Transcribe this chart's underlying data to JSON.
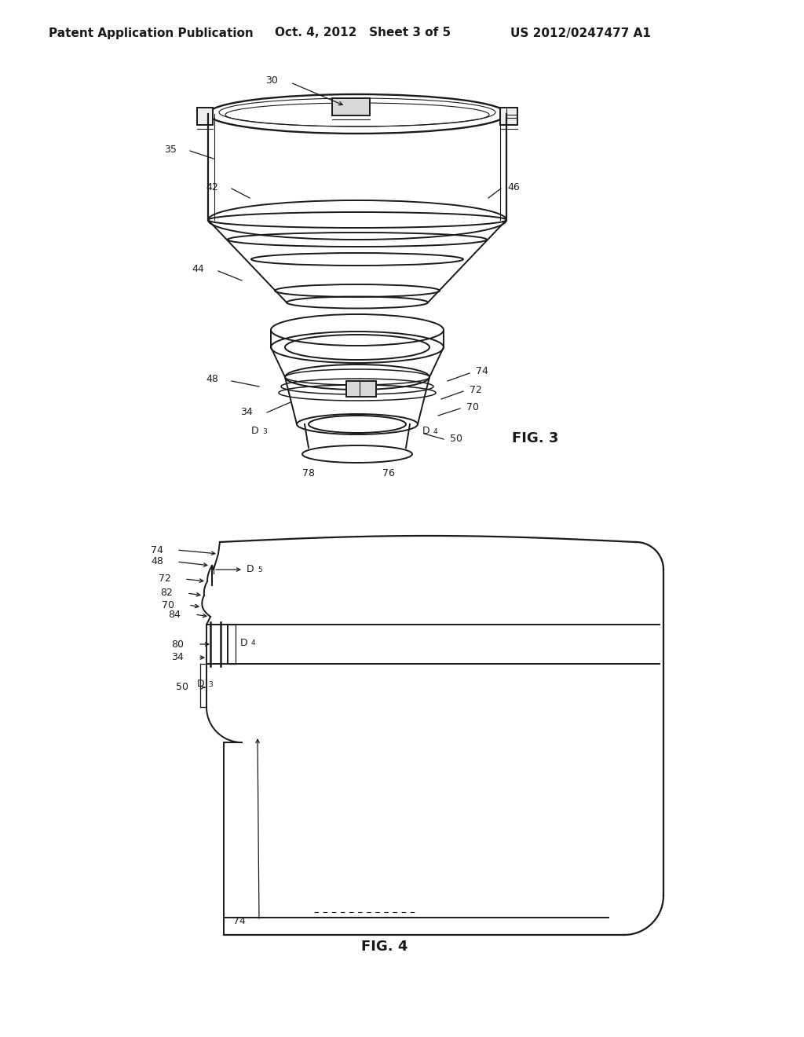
{
  "background_color": "#ffffff",
  "header_left": "Patent Application Publication",
  "header_center": "Oct. 4, 2012   Sheet 3 of 5",
  "header_right": "US 2012/0247477 A1",
  "header_fontsize": 11,
  "fig3_label": "FIG. 3",
  "fig4_label": "FIG. 4",
  "line_color": "#1a1a1a",
  "line_width": 1.4,
  "thin_line": 0.8,
  "gray_fill": "#d8d8d8",
  "light_gray": "#eeeeee"
}
